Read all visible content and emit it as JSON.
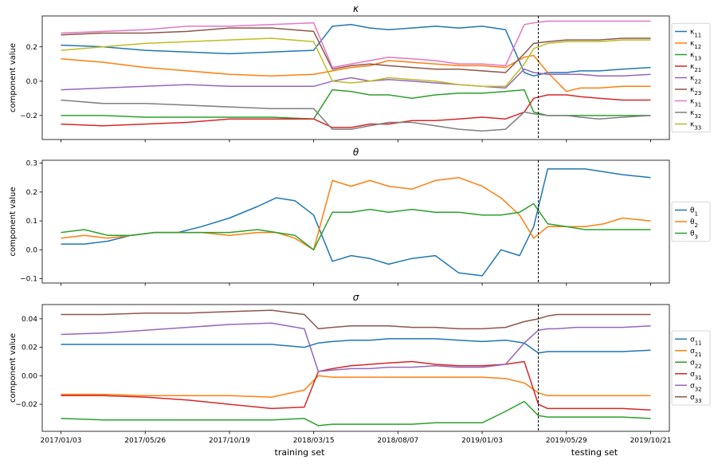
{
  "chart_data": [
    {
      "type": "line",
      "title": "κ",
      "ylabel": "component value",
      "ylim": [
        -0.34,
        0.38
      ],
      "yticks": [
        -0.2,
        0.0,
        0.2
      ],
      "ytick_labels": [
        "−0.2",
        "0.0",
        "0.2"
      ],
      "x": [
        0,
        9,
        18,
        27,
        36,
        45,
        54,
        58,
        62,
        66,
        70,
        75,
        80,
        85,
        90,
        95,
        99,
        101,
        104,
        108,
        111,
        115,
        120,
        126
      ],
      "series": [
        {
          "name": "κ",
          "sub": "11",
          "color": "#1f77b4",
          "values": [
            0.21,
            0.2,
            0.18,
            0.17,
            0.16,
            0.17,
            0.18,
            0.32,
            0.33,
            0.31,
            0.3,
            0.31,
            0.32,
            0.31,
            0.32,
            0.3,
            0.05,
            0.03,
            0.05,
            0.05,
            0.06,
            0.06,
            0.07,
            0.08
          ]
        },
        {
          "name": "κ",
          "sub": "12",
          "color": "#ff7f0e",
          "values": [
            0.13,
            0.11,
            0.08,
            0.06,
            0.04,
            0.03,
            0.04,
            0.06,
            0.08,
            0.09,
            0.12,
            0.11,
            0.1,
            0.09,
            0.09,
            0.08,
            0.14,
            0.15,
            0.05,
            -0.06,
            -0.04,
            -0.04,
            -0.03,
            -0.03
          ]
        },
        {
          "name": "κ",
          "sub": "13",
          "color": "#2ca02c",
          "values": [
            -0.2,
            -0.2,
            -0.21,
            -0.21,
            -0.21,
            -0.21,
            -0.22,
            -0.05,
            -0.06,
            -0.08,
            -0.08,
            -0.1,
            -0.08,
            -0.07,
            -0.07,
            -0.06,
            -0.05,
            -0.18,
            -0.2,
            -0.2,
            -0.2,
            -0.2,
            -0.2,
            -0.2
          ]
        },
        {
          "name": "κ",
          "sub": "21",
          "color": "#d62728",
          "values": [
            -0.25,
            -0.26,
            -0.25,
            -0.24,
            -0.22,
            -0.22,
            -0.22,
            -0.27,
            -0.27,
            -0.25,
            -0.25,
            -0.23,
            -0.23,
            -0.22,
            -0.21,
            -0.22,
            -0.18,
            -0.1,
            -0.08,
            -0.08,
            -0.09,
            -0.1,
            -0.11,
            -0.11
          ]
        },
        {
          "name": "κ",
          "sub": "22",
          "color": "#9467bd",
          "values": [
            -0.05,
            -0.04,
            -0.03,
            -0.02,
            -0.03,
            -0.03,
            -0.03,
            0.0,
            0.02,
            0.0,
            0.01,
            0.0,
            -0.01,
            -0.02,
            -0.03,
            -0.04,
            0.07,
            0.05,
            0.04,
            0.04,
            0.04,
            0.03,
            0.03,
            0.04
          ]
        },
        {
          "name": "κ",
          "sub": "23",
          "color": "#8c564b",
          "values": [
            0.27,
            0.28,
            0.28,
            0.29,
            0.31,
            0.31,
            0.29,
            0.07,
            0.09,
            0.1,
            0.09,
            0.08,
            0.07,
            0.07,
            0.06,
            0.05,
            0.16,
            0.22,
            0.23,
            0.24,
            0.24,
            0.24,
            0.25,
            0.25
          ]
        },
        {
          "name": "κ",
          "sub": "31",
          "color": "#e377c2",
          "values": [
            0.28,
            0.29,
            0.3,
            0.32,
            0.32,
            0.33,
            0.34,
            0.08,
            0.1,
            0.12,
            0.14,
            0.13,
            0.12,
            0.1,
            0.1,
            0.09,
            0.33,
            0.34,
            0.35,
            0.35,
            0.35,
            0.35,
            0.35,
            0.35
          ]
        },
        {
          "name": "κ",
          "sub": "32",
          "color": "#7f7f7f",
          "values": [
            -0.11,
            -0.13,
            -0.13,
            -0.14,
            -0.15,
            -0.16,
            -0.16,
            -0.28,
            -0.28,
            -0.26,
            -0.24,
            -0.24,
            -0.26,
            -0.28,
            -0.29,
            -0.28,
            -0.18,
            -0.19,
            -0.2,
            -0.2,
            -0.21,
            -0.22,
            -0.21,
            -0.2
          ]
        },
        {
          "name": "κ",
          "sub": "33",
          "color": "#bcbd22",
          "values": [
            0.18,
            0.2,
            0.22,
            0.23,
            0.24,
            0.25,
            0.23,
            0.0,
            -0.01,
            0.0,
            0.02,
            0.01,
            0.0,
            -0.02,
            -0.03,
            -0.03,
            0.1,
            0.19,
            0.22,
            0.23,
            0.23,
            0.23,
            0.24,
            0.24
          ]
        }
      ]
    },
    {
      "type": "line",
      "title": "θ",
      "ylabel": "component value",
      "ylim": [
        -0.115,
        0.31
      ],
      "yticks": [
        -0.1,
        0.0,
        0.1,
        0.2,
        0.3
      ],
      "ytick_labels": [
        "−0.1",
        "0.0",
        "0.1",
        "0.2",
        "0.3"
      ],
      "x": [
        0,
        5,
        10,
        15,
        20,
        25,
        30,
        36,
        42,
        46,
        50,
        54,
        58,
        62,
        66,
        70,
        75,
        80,
        85,
        90,
        94,
        98,
        101,
        104,
        108,
        112,
        116,
        120,
        126
      ],
      "series": [
        {
          "name": "θ",
          "sub": "1",
          "color": "#1f77b4",
          "values": [
            0.02,
            0.02,
            0.03,
            0.05,
            0.06,
            0.06,
            0.08,
            0.11,
            0.15,
            0.18,
            0.17,
            0.12,
            -0.04,
            -0.02,
            -0.03,
            -0.05,
            -0.03,
            -0.02,
            -0.08,
            -0.09,
            0.0,
            -0.02,
            0.08,
            0.28,
            0.28,
            0.28,
            0.27,
            0.26,
            0.25
          ]
        },
        {
          "name": "θ",
          "sub": "2",
          "color": "#ff7f0e",
          "values": [
            0.04,
            0.05,
            0.04,
            0.05,
            0.06,
            0.06,
            0.06,
            0.05,
            0.06,
            0.06,
            0.04,
            0.0,
            0.24,
            0.22,
            0.24,
            0.22,
            0.21,
            0.24,
            0.25,
            0.22,
            0.18,
            0.12,
            0.04,
            0.08,
            0.08,
            0.08,
            0.09,
            0.11,
            0.1
          ]
        },
        {
          "name": "θ",
          "sub": "3",
          "color": "#2ca02c",
          "values": [
            0.06,
            0.07,
            0.05,
            0.05,
            0.06,
            0.06,
            0.06,
            0.06,
            0.07,
            0.06,
            0.05,
            0.0,
            0.13,
            0.13,
            0.14,
            0.13,
            0.14,
            0.13,
            0.13,
            0.12,
            0.12,
            0.13,
            0.16,
            0.09,
            0.08,
            0.07,
            0.07,
            0.07,
            0.07
          ]
        }
      ]
    },
    {
      "type": "line",
      "title": "σ",
      "ylabel": "component value",
      "ylim": [
        -0.039,
        0.05
      ],
      "yticks": [
        -0.02,
        0.0,
        0.02,
        0.04
      ],
      "ytick_labels": [
        "−0.02",
        "0.00",
        "0.02",
        "0.04"
      ],
      "x": [
        0,
        9,
        18,
        27,
        36,
        45,
        52,
        55,
        58,
        62,
        66,
        70,
        75,
        80,
        85,
        90,
        95,
        99,
        102,
        104,
        106,
        110,
        115,
        120,
        126
      ],
      "series": [
        {
          "name": "σ",
          "sub": "11",
          "color": "#1f77b4",
          "values": [
            0.022,
            0.022,
            0.022,
            0.022,
            0.022,
            0.022,
            0.02,
            0.023,
            0.024,
            0.025,
            0.025,
            0.026,
            0.026,
            0.026,
            0.025,
            0.024,
            0.025,
            0.023,
            0.016,
            0.017,
            0.017,
            0.017,
            0.017,
            0.017,
            0.018
          ]
        },
        {
          "name": "σ",
          "sub": "21",
          "color": "#ff7f0e",
          "values": [
            -0.013,
            -0.013,
            -0.014,
            -0.014,
            -0.014,
            -0.015,
            -0.01,
            0.0,
            -0.001,
            -0.001,
            -0.001,
            -0.001,
            -0.001,
            -0.001,
            -0.001,
            -0.001,
            -0.002,
            -0.005,
            -0.012,
            -0.014,
            -0.014,
            -0.014,
            -0.014,
            -0.014,
            -0.014
          ]
        },
        {
          "name": "σ",
          "sub": "22",
          "color": "#2ca02c",
          "values": [
            -0.03,
            -0.031,
            -0.031,
            -0.031,
            -0.031,
            -0.031,
            -0.03,
            -0.035,
            -0.034,
            -0.034,
            -0.034,
            -0.034,
            -0.034,
            -0.033,
            -0.033,
            -0.033,
            -0.025,
            -0.018,
            -0.028,
            -0.029,
            -0.029,
            -0.029,
            -0.029,
            -0.029,
            -0.03
          ]
        },
        {
          "name": "σ",
          "sub": "31",
          "color": "#d62728",
          "values": [
            -0.014,
            -0.014,
            -0.015,
            -0.017,
            -0.02,
            -0.023,
            -0.022,
            0.003,
            0.005,
            0.007,
            0.008,
            0.009,
            0.01,
            0.008,
            0.007,
            0.007,
            0.008,
            0.01,
            -0.02,
            -0.023,
            -0.023,
            -0.023,
            -0.023,
            -0.023,
            -0.024
          ]
        },
        {
          "name": "σ",
          "sub": "32",
          "color": "#9467bd",
          "values": [
            0.029,
            0.03,
            0.032,
            0.034,
            0.036,
            0.037,
            0.033,
            0.003,
            0.004,
            0.005,
            0.005,
            0.006,
            0.006,
            0.007,
            0.006,
            0.006,
            0.008,
            0.023,
            0.032,
            0.033,
            0.033,
            0.034,
            0.034,
            0.034,
            0.035
          ]
        },
        {
          "name": "σ",
          "sub": "33",
          "color": "#8c564b",
          "values": [
            0.043,
            0.043,
            0.044,
            0.044,
            0.045,
            0.046,
            0.043,
            0.033,
            0.034,
            0.035,
            0.035,
            0.035,
            0.034,
            0.034,
            0.033,
            0.033,
            0.034,
            0.038,
            0.04,
            0.042,
            0.043,
            0.043,
            0.043,
            0.043,
            0.043
          ]
        }
      ]
    }
  ],
  "x_axis": {
    "range": [
      -4,
      130
    ],
    "split_x": 102,
    "tick_positions": [
      0,
      18,
      36,
      54,
      72,
      90,
      108,
      126
    ],
    "tick_labels": [
      "2017/01/03",
      "2017/05/26",
      "2017/10/19",
      "2018/03/15",
      "2018/08/07",
      "2019/01/03",
      "2019/05/29",
      "2019/10/21"
    ]
  },
  "set_labels": {
    "train": "training set",
    "test": "testing set"
  }
}
